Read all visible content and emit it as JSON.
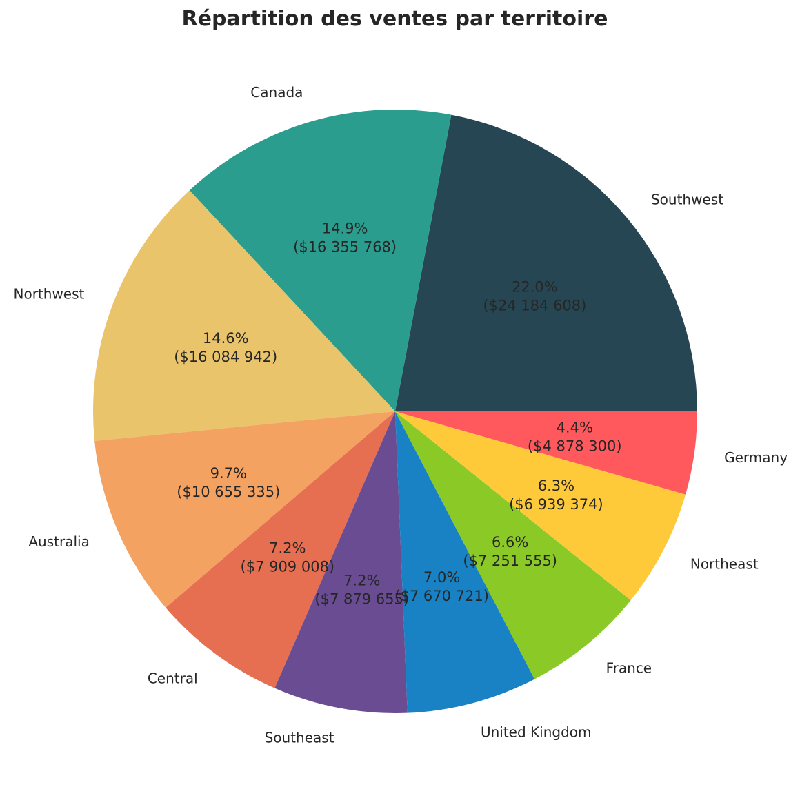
{
  "chart_data": {
    "type": "pie",
    "title": "Répartition des ventes par territoire",
    "start_angle_deg": 0,
    "direction": "counterclockwise",
    "slices": [
      {
        "label": "Southwest",
        "value": 24184608,
        "percent_label": "22.0%",
        "value_label": "($24 184 608)",
        "color": "#264653"
      },
      {
        "label": "Canada",
        "value": 16355768,
        "percent_label": "14.9%",
        "value_label": "($16 355 768)",
        "color": "#2A9D8F"
      },
      {
        "label": "Northwest",
        "value": 16084942,
        "percent_label": "14.6%",
        "value_label": "($16 084 942)",
        "color": "#E9C46A"
      },
      {
        "label": "Australia",
        "value": 10655335,
        "percent_label": "9.7%",
        "value_label": "($10 655 335)",
        "color": "#F4A261"
      },
      {
        "label": "Central",
        "value": 7909008,
        "percent_label": "7.2%",
        "value_label": "($7 909 008)",
        "color": "#E76F51"
      },
      {
        "label": "Southeast",
        "value": 7879655,
        "percent_label": "7.2%",
        "value_label": "($7 879 655)",
        "color": "#6A4C93"
      },
      {
        "label": "United Kingdom",
        "value": 7670721,
        "percent_label": "7.0%",
        "value_label": "($7 670 721)",
        "color": "#1982C4"
      },
      {
        "label": "France",
        "value": 7251555,
        "percent_label": "6.6%",
        "value_label": "($7 251 555)",
        "color": "#8AC926"
      },
      {
        "label": "Northeast",
        "value": 6939374,
        "percent_label": "6.3%",
        "value_label": "($6 939 374)",
        "color": "#FFCA3A"
      },
      {
        "label": "Germany",
        "value": 4878300,
        "percent_label": "4.4%",
        "value_label": "($4 878 300)",
        "color": "#FF595E"
      }
    ]
  }
}
